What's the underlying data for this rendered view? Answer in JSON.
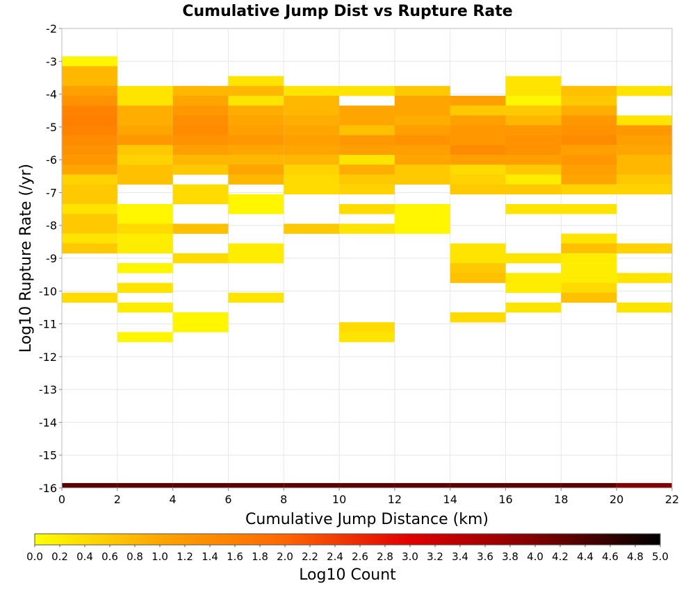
{
  "chart_data": {
    "type": "heatmap",
    "title": "Cumulative Jump Dist vs Rupture Rate",
    "xlabel": "Cumulative Jump Distance (km)",
    "ylabel": "Log10 Rupture Rate (/yr)",
    "colorbar_label": "Log10 Count",
    "xlim": [
      0,
      22
    ],
    "ylim": [
      -16,
      -2
    ],
    "x_ticks": [
      "0",
      "2",
      "4",
      "6",
      "8",
      "10",
      "12",
      "14",
      "16",
      "18",
      "20",
      "22"
    ],
    "y_ticks": [
      "-2",
      "-3",
      "-4",
      "-5",
      "-6",
      "-7",
      "-8",
      "-9",
      "-10",
      "-11",
      "-12",
      "-13",
      "-14",
      "-15",
      "-16"
    ],
    "colorbar_ticks": [
      "0.0",
      "0.2",
      "0.4",
      "0.6",
      "0.8",
      "1.0",
      "1.2",
      "1.4",
      "1.6",
      "1.8",
      "2.0",
      "2.2",
      "2.4",
      "2.6",
      "2.8",
      "3.0",
      "3.2",
      "3.4",
      "3.6",
      "3.8",
      "4.0",
      "4.2",
      "4.4",
      "4.6",
      "4.8",
      "5.0"
    ],
    "colorbar_range": [
      0,
      5
    ],
    "colormap": [
      "#ffff00",
      "#ffa500",
      "#ff6600",
      "#e00000",
      "#800000",
      "#000000"
    ],
    "grid": true,
    "colorbar_position": "bottom",
    "x_bin_width": 2,
    "y_bin_height": 0.3,
    "columns": [
      {
        "x": 0,
        "cells": [
          {
            "y": -3.0,
            "v": 0.1
          },
          {
            "y": -3.3,
            "v": 0.8
          },
          {
            "y": -3.6,
            "v": 0.8
          },
          {
            "y": -3.9,
            "v": 1.1
          },
          {
            "y": -4.2,
            "v": 1.3
          },
          {
            "y": -4.5,
            "v": 1.55
          },
          {
            "y": -4.8,
            "v": 1.6
          },
          {
            "y": -5.1,
            "v": 1.55
          },
          {
            "y": -5.4,
            "v": 1.4
          },
          {
            "y": -5.7,
            "v": 1.3
          },
          {
            "y": -6.0,
            "v": 1.2
          },
          {
            "y": -6.3,
            "v": 1.0
          },
          {
            "y": -6.6,
            "v": 0.5
          },
          {
            "y": -6.9,
            "v": 0.6
          },
          {
            "y": -7.2,
            "v": 0.6
          },
          {
            "y": -7.5,
            "v": 0.3
          },
          {
            "y": -7.8,
            "v": 0.6
          },
          {
            "y": -8.1,
            "v": 0.6
          },
          {
            "y": -8.4,
            "v": 0.3
          },
          {
            "y": -8.7,
            "v": 0.6
          },
          {
            "y": -10.2,
            "v": 0.4
          }
        ]
      },
      {
        "x": 2,
        "cells": [
          {
            "y": -3.9,
            "v": 0.3
          },
          {
            "y": -4.2,
            "v": 0.3
          },
          {
            "y": -4.5,
            "v": 0.9
          },
          {
            "y": -4.8,
            "v": 0.9
          },
          {
            "y": -5.1,
            "v": 1.0
          },
          {
            "y": -5.4,
            "v": 1.2
          },
          {
            "y": -5.7,
            "v": 0.6
          },
          {
            "y": -6.0,
            "v": 0.5
          },
          {
            "y": -6.3,
            "v": 0.7
          },
          {
            "y": -6.6,
            "v": 0.7
          },
          {
            "y": -7.5,
            "v": 0.1
          },
          {
            "y": -7.8,
            "v": 0.1
          },
          {
            "y": -8.1,
            "v": 0.4
          },
          {
            "y": -8.4,
            "v": 0.2
          },
          {
            "y": -8.7,
            "v": 0.2
          },
          {
            "y": -9.3,
            "v": 0.1
          },
          {
            "y": -9.9,
            "v": 0.3
          },
          {
            "y": -10.5,
            "v": 0.2
          },
          {
            "y": -11.4,
            "v": 0.1
          }
        ]
      },
      {
        "x": 4,
        "cells": [
          {
            "y": -3.9,
            "v": 0.8
          },
          {
            "y": -4.2,
            "v": 1.0
          },
          {
            "y": -4.5,
            "v": 1.2
          },
          {
            "y": -4.8,
            "v": 1.35
          },
          {
            "y": -5.1,
            "v": 1.4
          },
          {
            "y": -5.4,
            "v": 1.3
          },
          {
            "y": -5.7,
            "v": 1.1
          },
          {
            "y": -6.0,
            "v": 0.8
          },
          {
            "y": -6.3,
            "v": 0.6
          },
          {
            "y": -6.9,
            "v": 0.4
          },
          {
            "y": -7.2,
            "v": 0.4
          },
          {
            "y": -8.1,
            "v": 0.7
          },
          {
            "y": -9.0,
            "v": 0.4
          },
          {
            "y": -10.8,
            "v": 0.1
          },
          {
            "y": -11.1,
            "v": 0.1
          }
        ]
      },
      {
        "x": 6,
        "cells": [
          {
            "y": -3.6,
            "v": 0.3
          },
          {
            "y": -3.9,
            "v": 0.8
          },
          {
            "y": -4.2,
            "v": 0.3
          },
          {
            "y": -4.5,
            "v": 0.9
          },
          {
            "y": -4.8,
            "v": 1.0
          },
          {
            "y": -5.1,
            "v": 1.1
          },
          {
            "y": -5.4,
            "v": 1.2
          },
          {
            "y": -5.7,
            "v": 1.0
          },
          {
            "y": -6.0,
            "v": 0.8
          },
          {
            "y": -6.3,
            "v": 1.0
          },
          {
            "y": -6.6,
            "v": 0.8
          },
          {
            "y": -7.2,
            "v": 0.1
          },
          {
            "y": -7.5,
            "v": 0.1
          },
          {
            "y": -8.7,
            "v": 0.2
          },
          {
            "y": -9.0,
            "v": 0.2
          },
          {
            "y": -10.2,
            "v": 0.3
          }
        ]
      },
      {
        "x": 8,
        "cells": [
          {
            "y": -3.9,
            "v": 0.3
          },
          {
            "y": -4.2,
            "v": 0.8
          },
          {
            "y": -4.5,
            "v": 0.8
          },
          {
            "y": -4.8,
            "v": 0.9
          },
          {
            "y": -5.1,
            "v": 1.0
          },
          {
            "y": -5.4,
            "v": 1.1
          },
          {
            "y": -5.7,
            "v": 1.0
          },
          {
            "y": -6.0,
            "v": 0.8
          },
          {
            "y": -6.3,
            "v": 0.5
          },
          {
            "y": -6.6,
            "v": 0.4
          },
          {
            "y": -6.9,
            "v": 0.4
          },
          {
            "y": -8.1,
            "v": 0.6
          }
        ]
      },
      {
        "x": 10,
        "cells": [
          {
            "y": -3.9,
            "v": 0.3
          },
          {
            "y": -4.5,
            "v": 1.0
          },
          {
            "y": -4.8,
            "v": 1.0
          },
          {
            "y": -5.1,
            "v": 0.7
          },
          {
            "y": -5.4,
            "v": 1.2
          },
          {
            "y": -5.7,
            "v": 1.1
          },
          {
            "y": -6.0,
            "v": 0.3
          },
          {
            "y": -6.3,
            "v": 0.9
          },
          {
            "y": -6.6,
            "v": 0.6
          },
          {
            "y": -6.9,
            "v": 0.5
          },
          {
            "y": -7.5,
            "v": 0.4
          },
          {
            "y": -8.1,
            "v": 0.3
          },
          {
            "y": -11.1,
            "v": 0.4
          },
          {
            "y": -11.4,
            "v": 0.3
          }
        ]
      },
      {
        "x": 12,
        "cells": [
          {
            "y": -3.9,
            "v": 0.6
          },
          {
            "y": -4.2,
            "v": 1.0
          },
          {
            "y": -4.5,
            "v": 1.0
          },
          {
            "y": -4.8,
            "v": 0.9
          },
          {
            "y": -5.1,
            "v": 1.1
          },
          {
            "y": -5.4,
            "v": 1.3
          },
          {
            "y": -5.7,
            "v": 1.1
          },
          {
            "y": -6.0,
            "v": 1.0
          },
          {
            "y": -6.3,
            "v": 0.6
          },
          {
            "y": -6.6,
            "v": 0.6
          },
          {
            "y": -7.5,
            "v": 0.1
          },
          {
            "y": -7.8,
            "v": 0.1
          },
          {
            "y": -8.1,
            "v": 0.1
          }
        ]
      },
      {
        "x": 14,
        "cells": [
          {
            "y": -4.2,
            "v": 1.1
          },
          {
            "y": -4.5,
            "v": 0.6
          },
          {
            "y": -4.8,
            "v": 1.1
          },
          {
            "y": -5.1,
            "v": 1.2
          },
          {
            "y": -5.4,
            "v": 1.2
          },
          {
            "y": -5.7,
            "v": 1.4
          },
          {
            "y": -6.0,
            "v": 1.1
          },
          {
            "y": -6.3,
            "v": 0.4
          },
          {
            "y": -6.6,
            "v": 0.5
          },
          {
            "y": -6.9,
            "v": 0.6
          },
          {
            "y": -8.7,
            "v": 0.3
          },
          {
            "y": -9.0,
            "v": 0.3
          },
          {
            "y": -9.3,
            "v": 0.6
          },
          {
            "y": -9.6,
            "v": 0.7
          },
          {
            "y": -10.8,
            "v": 0.4
          }
        ]
      },
      {
        "x": 16,
        "cells": [
          {
            "y": -3.6,
            "v": 0.3
          },
          {
            "y": -3.9,
            "v": 0.3
          },
          {
            "y": -4.2,
            "v": 0.1
          },
          {
            "y": -4.5,
            "v": 0.6
          },
          {
            "y": -4.8,
            "v": 0.8
          },
          {
            "y": -5.1,
            "v": 1.2
          },
          {
            "y": -5.4,
            "v": 1.3
          },
          {
            "y": -5.7,
            "v": 1.3
          },
          {
            "y": -6.0,
            "v": 1.1
          },
          {
            "y": -6.3,
            "v": 0.6
          },
          {
            "y": -6.6,
            "v": 0.2
          },
          {
            "y": -6.9,
            "v": 0.6
          },
          {
            "y": -7.5,
            "v": 0.3
          },
          {
            "y": -9.0,
            "v": 0.3
          },
          {
            "y": -9.6,
            "v": 0.2
          },
          {
            "y": -9.9,
            "v": 0.2
          },
          {
            "y": -10.5,
            "v": 0.3
          }
        ]
      },
      {
        "x": 18,
        "cells": [
          {
            "y": -3.9,
            "v": 0.7
          },
          {
            "y": -4.2,
            "v": 0.6
          },
          {
            "y": -4.5,
            "v": 0.9
          },
          {
            "y": -4.8,
            "v": 1.2
          },
          {
            "y": -5.1,
            "v": 1.3
          },
          {
            "y": -5.4,
            "v": 1.4
          },
          {
            "y": -5.7,
            "v": 1.1
          },
          {
            "y": -6.0,
            "v": 1.2
          },
          {
            "y": -6.3,
            "v": 1.1
          },
          {
            "y": -6.6,
            "v": 1.0
          },
          {
            "y": -6.9,
            "v": 0.5
          },
          {
            "y": -7.5,
            "v": 0.3
          },
          {
            "y": -8.4,
            "v": 0.3
          },
          {
            "y": -8.7,
            "v": 0.7
          },
          {
            "y": -9.0,
            "v": 0.2
          },
          {
            "y": -9.3,
            "v": 0.2
          },
          {
            "y": -9.6,
            "v": 0.2
          },
          {
            "y": -9.9,
            "v": 0.4
          },
          {
            "y": -10.2,
            "v": 0.7
          }
        ]
      },
      {
        "x": 20,
        "cells": [
          {
            "y": -3.9,
            "v": 0.3
          },
          {
            "y": -4.8,
            "v": 0.3
          },
          {
            "y": -5.1,
            "v": 1.2
          },
          {
            "y": -5.4,
            "v": 1.1
          },
          {
            "y": -5.7,
            "v": 1.0
          },
          {
            "y": -6.0,
            "v": 0.8
          },
          {
            "y": -6.3,
            "v": 0.8
          },
          {
            "y": -6.6,
            "v": 0.6
          },
          {
            "y": -6.9,
            "v": 0.5
          },
          {
            "y": -8.7,
            "v": 0.5
          },
          {
            "y": -9.6,
            "v": 0.3
          },
          {
            "y": -10.5,
            "v": 0.3
          }
        ]
      }
    ],
    "band": {
      "y": -16,
      "values": [
        4.3,
        4.3,
        4.3,
        4.3,
        4.3,
        4.3,
        4.3,
        4.3,
        4.3,
        4.3,
        4.0
      ]
    }
  }
}
